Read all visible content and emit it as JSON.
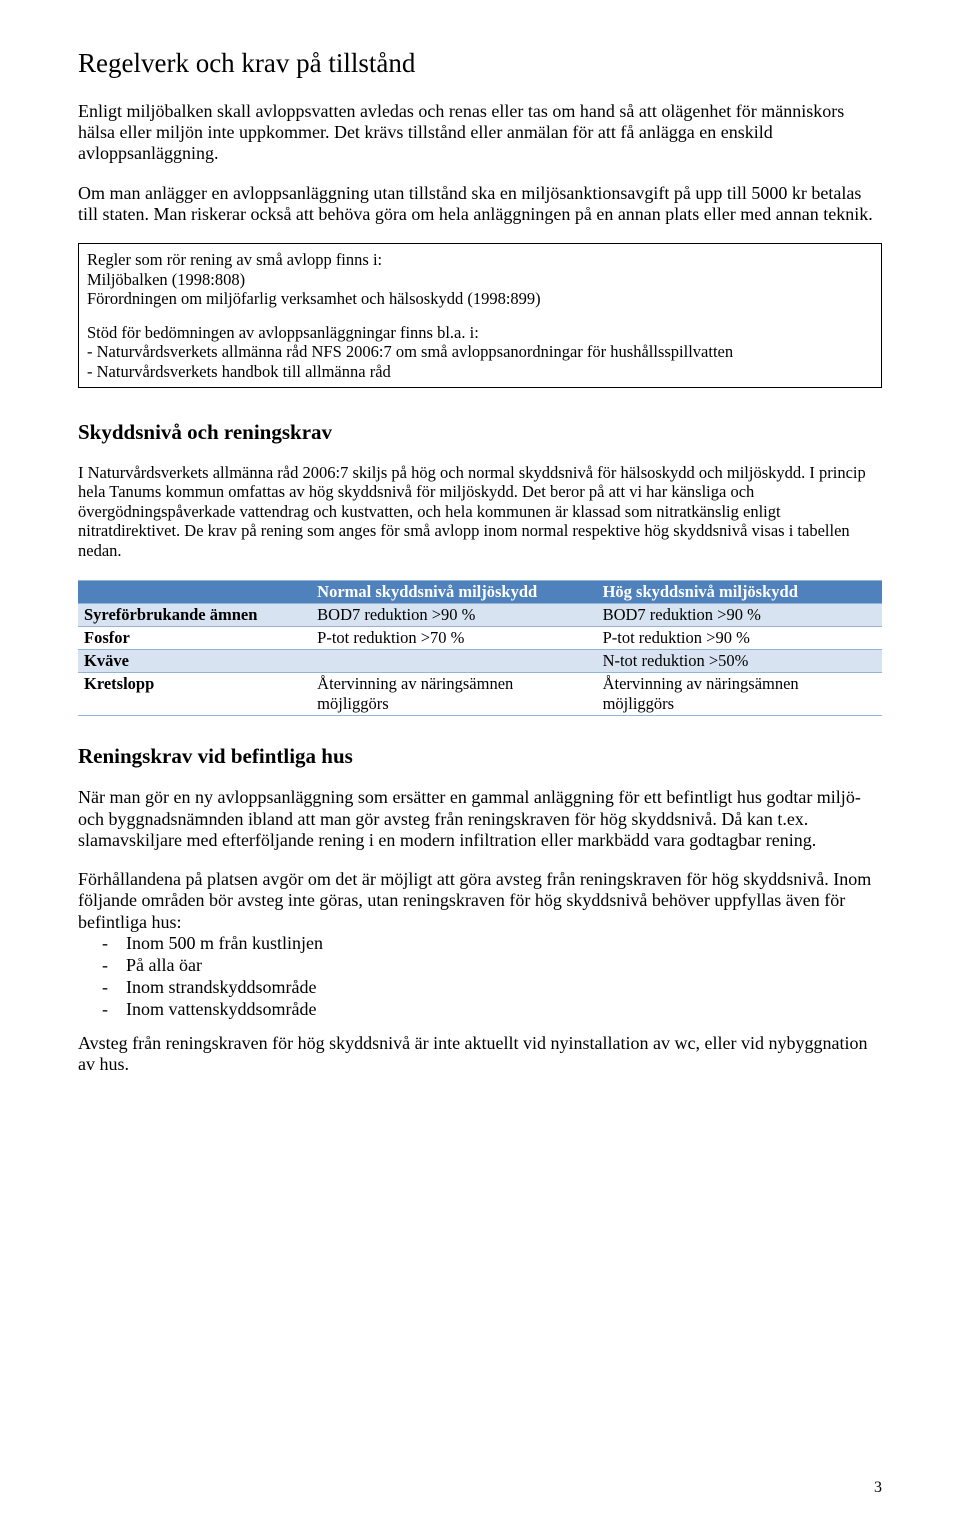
{
  "title": "Regelverk och krav på tillstånd",
  "intro_p1": "Enligt miljöbalken skall avloppsvatten avledas och renas eller tas om hand så att olägenhet för människors hälsa eller miljön inte uppkommer. Det krävs tillstånd eller anmälan för att få anlägga en enskild avloppsanläggning.",
  "intro_p2": "Om man anlägger en avloppsanläggning utan tillstånd ska en miljösanktionsavgift på upp till 5000 kr betalas till staten. Man riskerar också att behöva göra om hela anläggningen på en annan plats eller med annan teknik.",
  "box": {
    "rules_intro": "Regler som rör rening av små avlopp finns i:",
    "rules_line1": "Miljöbalken (1998:808)",
    "rules_line2": "Förordningen om miljöfarlig verksamhet och hälsoskydd (1998:899)",
    "support_intro": "Stöd för bedömningen av avloppsanläggningar finns bl.a. i:",
    "support_line1": "- Naturvårdsverkets allmänna råd NFS 2006:7 om små avloppsanordningar för hushållsspillvatten",
    "support_line2": "- Naturvårdsverkets handbok till allmänna råd"
  },
  "section1": {
    "heading": "Skyddsnivå och reningskrav",
    "text": "I Naturvårdsverkets allmänna råd 2006:7 skiljs på hög och normal skyddsnivå för hälsoskydd och miljöskydd. I princip hela Tanums kommun omfattas av hög skyddsnivå för miljöskydd. Det beror på att vi har känsliga och övergödningspåverkade vattendrag och kustvatten, och hela kommunen är klassad som nitratkänslig enligt nitratdirektivet. De krav på rening som anges för små avlopp inom normal respektive hög skyddsnivå visas i tabellen nedan."
  },
  "table": {
    "colors": {
      "header_bg": "#4f81bd",
      "header_text": "#ffffff",
      "row_alt_bg": "#d7e3f0",
      "border": "#95b3d7"
    },
    "col_widths": [
      "29%",
      "35.5%",
      "35.5%"
    ],
    "columns": [
      "",
      "Normal skyddsnivå miljöskydd",
      "Hög skyddsnivå miljöskydd"
    ],
    "rows": [
      {
        "label": "Syreförbrukande ämnen",
        "normal": "BOD7 reduktion >90 %",
        "hog": "BOD7 reduktion >90 %",
        "shaded": true
      },
      {
        "label": "Fosfor",
        "normal": "P-tot reduktion >70 %",
        "hog": "P-tot reduktion >90 %",
        "shaded": false
      },
      {
        "label": "Kväve",
        "normal": "",
        "hog": "N-tot reduktion >50%",
        "shaded": true
      },
      {
        "label": "Kretslopp",
        "normal": "Återvinning av näringsämnen möjliggörs",
        "hog": "Återvinning av näringsämnen möjliggörs",
        "shaded": false
      }
    ]
  },
  "section2": {
    "heading": "Reningskrav vid befintliga hus",
    "p1": "När man gör en ny avloppsanläggning som ersätter en gammal anläggning för ett befintligt hus godtar miljö- och byggnadsnämnden ibland att man gör avsteg från reningskraven för hög skyddsnivå. Då kan t.ex. slamavskiljare med efterföljande rening i en modern infiltration eller markbädd vara godtagbar rening.",
    "p2_lead": "Förhållandena på platsen avgör om det är möjligt att göra avsteg från reningskraven för hög skyddsnivå. Inom följande områden bör avsteg inte göras, utan reningskraven för hög skyddsnivå behöver uppfyllas även för befintliga hus:",
    "bullets": [
      "Inom 500 m från kustlinjen",
      "På alla öar",
      "Inom strandskyddsområde",
      "Inom vattenskyddsområde"
    ],
    "p3": "Avsteg från reningskraven för hög skyddsnivå är inte aktuellt vid nyinstallation av wc, eller vid nybyggnation av hus."
  },
  "page_number": "3"
}
